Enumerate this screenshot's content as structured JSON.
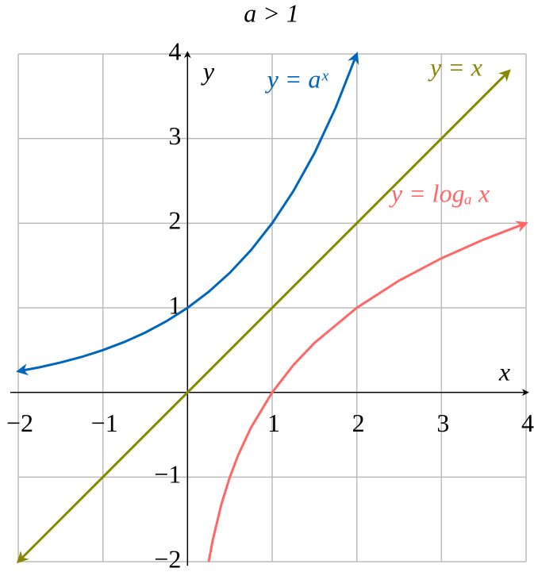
{
  "chart_data": {
    "type": "line",
    "title": "a > 1",
    "x_label": "x",
    "y_label": "y",
    "xlim": [
      -2,
      4
    ],
    "ylim": [
      -2,
      4
    ],
    "xticks": [
      {
        "value": -2,
        "label": "−2"
      },
      {
        "value": -1,
        "label": "−1"
      },
      1,
      2,
      3,
      4
    ],
    "yticks": [
      {
        "value": -2,
        "label": "−2"
      },
      {
        "value": -1,
        "label": "−1"
      },
      1,
      2,
      3,
      4
    ],
    "grid": true,
    "series": [
      {
        "name": "y = aˣ",
        "color": "#0066bb",
        "arrows": "both",
        "x": [
          -2,
          -1.75,
          -1.5,
          -1.25,
          -1,
          -0.75,
          -0.5,
          -0.25,
          0,
          0.25,
          0.5,
          0.75,
          1,
          1.25,
          1.5,
          1.75,
          2
        ],
        "values": [
          0.25,
          0.297,
          0.354,
          0.42,
          0.5,
          0.595,
          0.707,
          0.841,
          1,
          1.189,
          1.414,
          1.682,
          2,
          2.378,
          2.828,
          3.364,
          4
        ]
      },
      {
        "name": "y = x",
        "color": "#888800",
        "arrows": "both",
        "x": [
          -2,
          3.8
        ],
        "values": [
          -2,
          3.8
        ]
      },
      {
        "name": "y = logₐ x",
        "color": "#ff6666",
        "arrows": "end",
        "x": [
          0.25,
          0.3,
          0.4,
          0.5,
          0.6,
          0.75,
          1,
          1.25,
          1.5,
          2,
          2.5,
          3,
          3.5,
          4
        ],
        "values": [
          -2,
          -1.737,
          -1.322,
          -1,
          -0.737,
          -0.415,
          0,
          0.322,
          0.585,
          1,
          1.322,
          1.585,
          1.807,
          2
        ]
      }
    ]
  }
}
